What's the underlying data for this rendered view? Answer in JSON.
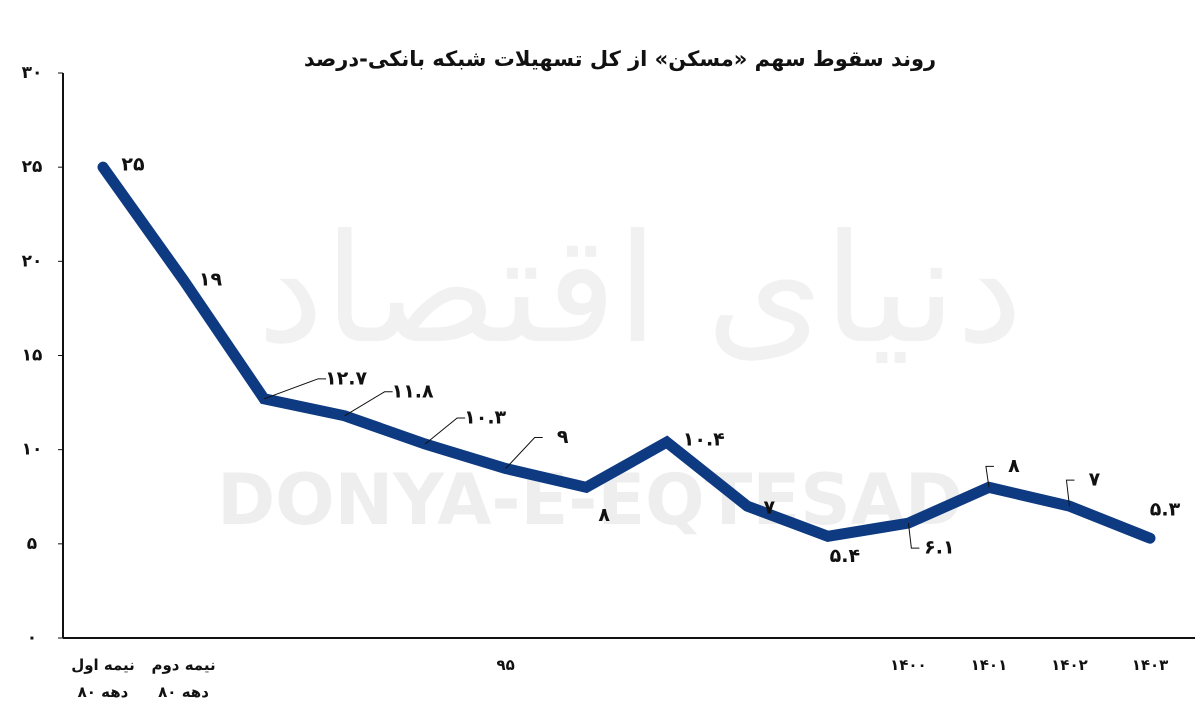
{
  "chart_data": {
    "type": "line",
    "title": "روند سقوط سهم «مسکن» از کل تسهیلات شبکه بانکی-درصد",
    "watermark": "DONYA-E-EQTESAD",
    "watermark_fa": "دنیای اقتصاد",
    "categories": [
      "نیمه اول\nدهه ۸۰",
      "نیمه دوم\nدهه ۸۰",
      null,
      null,
      null,
      "۹۵",
      null,
      null,
      null,
      null,
      "۱۴۰۰",
      "۱۴۰۱",
      "۱۴۰۲",
      "۱۴۰۳"
    ],
    "series": [
      {
        "color": "#0e3a82",
        "values": [
          25,
          19,
          12.7,
          11.8,
          10.3,
          9,
          8,
          10.4,
          7,
          5.4,
          6.1,
          8,
          7,
          5.3
        ],
        "value_labels": [
          "۲۵",
          "۱۹",
          "۱۲.۷",
          "۱۱.۸",
          "۱۰.۳",
          "۹",
          "۸",
          "۱۰.۴",
          "۷",
          "۵.۴",
          "۶.۱",
          "۸",
          "۷",
          "۵.۳"
        ]
      }
    ],
    "ylim": [
      0,
      30
    ],
    "yticks": [
      {
        "value": 0,
        "label": "۰"
      },
      {
        "value": 5,
        "label": "۵"
      },
      {
        "value": 10,
        "label": "۱۰"
      },
      {
        "value": 15,
        "label": "۱۵"
      },
      {
        "value": 20,
        "label": "۲۰"
      },
      {
        "value": 25,
        "label": "۲۵"
      },
      {
        "value": 30,
        "label": "۳۰"
      }
    ],
    "grid": false
  }
}
